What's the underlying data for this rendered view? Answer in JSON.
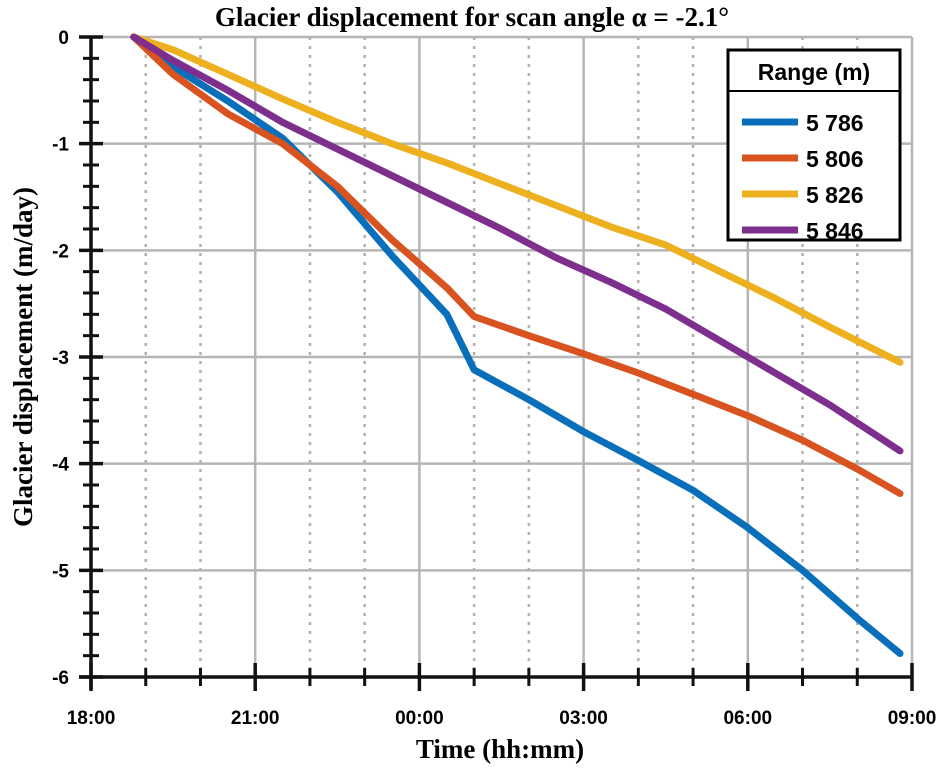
{
  "chart_data": {
    "type": "line",
    "title": "Glacier displacement for scan angle α = -2.1°",
    "xlabel": "Time (hh:mm)",
    "ylabel": "Glacier displacement (m/day)",
    "x_units": "hours since 18:00",
    "xlim": [
      0,
      15
    ],
    "ylim": [
      -6,
      0
    ],
    "x_ticks": [
      0,
      3,
      6,
      9,
      12,
      15
    ],
    "x_tick_labels": [
      "18:00",
      "21:00",
      "00:00",
      "03:00",
      "06:00",
      "09:00"
    ],
    "x_minor_ticks": [
      1,
      2,
      4,
      5,
      7,
      8,
      10,
      11,
      13,
      14
    ],
    "y_ticks": [
      0,
      -1,
      -2,
      -3,
      -4,
      -5,
      -6
    ],
    "y_tick_labels": [
      "0",
      "-1",
      "-2",
      "-3",
      "-4",
      "-5",
      "-6"
    ],
    "grid": true,
    "legend": {
      "title": "Range (m)",
      "position": "top-right"
    },
    "series": [
      {
        "name": "5 786",
        "color": "#0a6fba",
        "x": [
          0.78,
          1.5,
          2.5,
          3.5,
          4.5,
          5.5,
          6.5,
          7.0,
          8,
          9,
          10,
          11,
          12,
          13,
          14,
          14.78
        ],
        "y": [
          0,
          -0.28,
          -0.6,
          -0.95,
          -1.45,
          -2.05,
          -2.6,
          -3.12,
          -3.4,
          -3.7,
          -3.97,
          -4.25,
          -4.6,
          -5.0,
          -5.45,
          -5.78
        ]
      },
      {
        "name": "5 806",
        "color": "#d95320",
        "x": [
          0.78,
          1.5,
          2.5,
          3.5,
          4.5,
          5.5,
          6.5,
          7.0,
          8,
          9,
          10,
          11,
          12,
          13,
          14,
          14.78
        ],
        "y": [
          0,
          -0.35,
          -0.72,
          -1.0,
          -1.4,
          -1.9,
          -2.35,
          -2.62,
          -2.8,
          -2.97,
          -3.15,
          -3.35,
          -3.55,
          -3.78,
          -4.05,
          -4.28
        ]
      },
      {
        "name": "5 826",
        "color": "#edb120",
        "x": [
          0.78,
          1.5,
          2.5,
          3.5,
          4.5,
          5.5,
          6.5,
          7.5,
          8.5,
          9.5,
          10.5,
          11.5,
          12.5,
          13.5,
          14.78
        ],
        "y": [
          0,
          -0.12,
          -0.35,
          -0.58,
          -0.8,
          -1.0,
          -1.18,
          -1.38,
          -1.58,
          -1.78,
          -1.95,
          -2.2,
          -2.45,
          -2.72,
          -3.05
        ]
      },
      {
        "name": "5 846",
        "color": "#7e2f8e",
        "x": [
          0.78,
          1.5,
          2.5,
          3.5,
          4.5,
          5.5,
          6.5,
          7.5,
          8.5,
          9.5,
          10.5,
          11.5,
          12.5,
          13.5,
          14.78
        ],
        "y": [
          0,
          -0.22,
          -0.5,
          -0.8,
          -1.05,
          -1.3,
          -1.55,
          -1.8,
          -2.07,
          -2.3,
          -2.55,
          -2.85,
          -3.15,
          -3.45,
          -3.88
        ]
      }
    ]
  }
}
